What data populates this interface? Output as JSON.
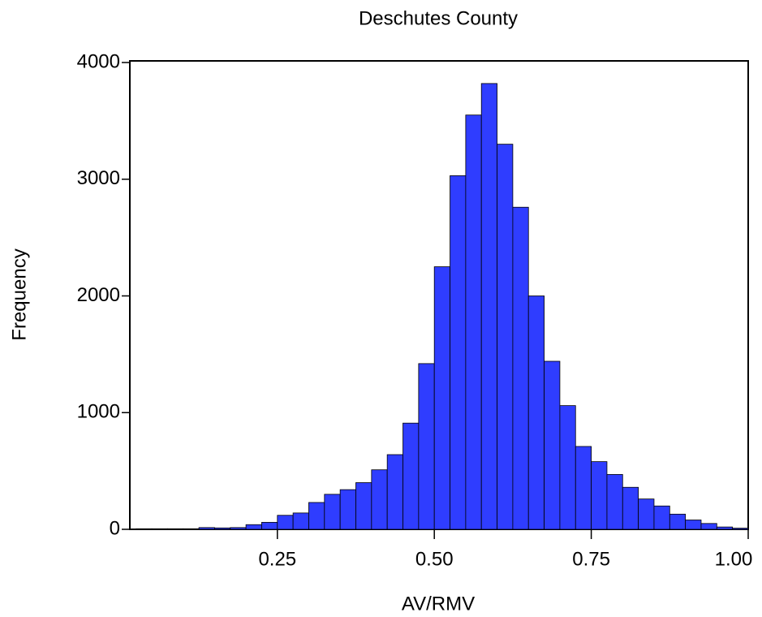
{
  "chart_data": {
    "type": "histogram",
    "title": "Deschutes County",
    "x_label": "AV/RMV",
    "y_label": "Frequency",
    "bins": [
      0.025,
      0.05,
      0.075,
      0.1,
      0.125,
      0.15,
      0.175,
      0.2,
      0.225,
      0.25,
      0.275,
      0.3,
      0.325,
      0.35,
      0.375,
      0.4,
      0.425,
      0.45,
      0.475,
      0.5,
      0.525,
      0.55,
      0.575,
      0.6,
      0.625,
      0.65,
      0.675,
      0.7,
      0.725,
      0.75,
      0.775,
      0.8,
      0.825,
      0.85,
      0.875,
      0.9,
      0.925,
      0.95,
      0.975,
      1.0
    ],
    "values": [
      5,
      5,
      5,
      5,
      15,
      12,
      15,
      40,
      60,
      120,
      140,
      230,
      300,
      340,
      400,
      510,
      640,
      910,
      1420,
      2250,
      3030,
      3550,
      3820,
      3300,
      2760,
      2000,
      1440,
      1060,
      710,
      580,
      470,
      360,
      260,
      200,
      130,
      80,
      50,
      20,
      10,
      30
    ],
    "color": "#2f3dff",
    "xlim": [
      0.015,
      1.0
    ],
    "ylim": [
      0,
      4000
    ],
    "xticks": [
      {
        "value": 0.25,
        "label": "0.25"
      },
      {
        "value": 0.5,
        "label": "0.50"
      },
      {
        "value": 0.75,
        "label": "0.75"
      },
      {
        "value": 1.0,
        "label": "1.00"
      }
    ],
    "yticks": [
      0,
      1000,
      2000,
      3000,
      4000
    ]
  }
}
